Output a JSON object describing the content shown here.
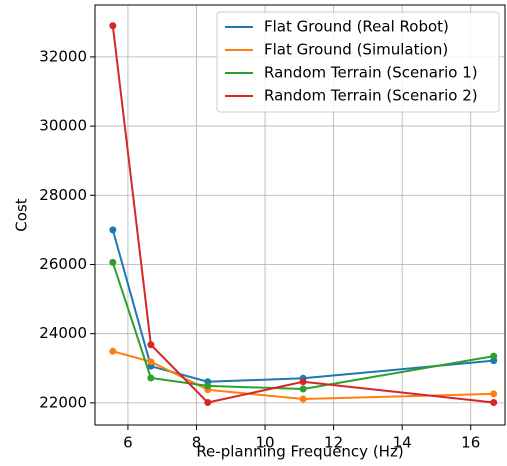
{
  "chart_data": {
    "type": "line",
    "xlabel": "Re-planning Frequency (Hz)",
    "ylabel": "Cost",
    "x": [
      5.56,
      6.67,
      8.33,
      11.11,
      16.67
    ],
    "series": [
      {
        "name": "Flat Ground (Real Robot)",
        "color": "#1f77b4",
        "values": [
          27000,
          23060,
          22610,
          22710,
          23220
        ]
      },
      {
        "name": "Flat Ground (Simulation)",
        "color": "#ff7f0e",
        "values": [
          23490,
          23190,
          22380,
          22110,
          22260
        ]
      },
      {
        "name": "Random Terrain (Scenario 1)",
        "color": "#2ca02c",
        "values": [
          26060,
          22720,
          22490,
          22400,
          23350
        ]
      },
      {
        "name": "Random Terrain (Scenario 2)",
        "color": "#d62728",
        "values": [
          32900,
          23680,
          22010,
          22610,
          22010
        ]
      }
    ],
    "xlim": [
      5.04,
      17.0
    ],
    "ylim": [
      21360,
      33500
    ],
    "xticks": [
      6,
      8,
      10,
      12,
      14,
      16
    ],
    "yticks": [
      22000,
      24000,
      26000,
      28000,
      30000,
      32000
    ],
    "grid": true,
    "legend": "upper right"
  }
}
